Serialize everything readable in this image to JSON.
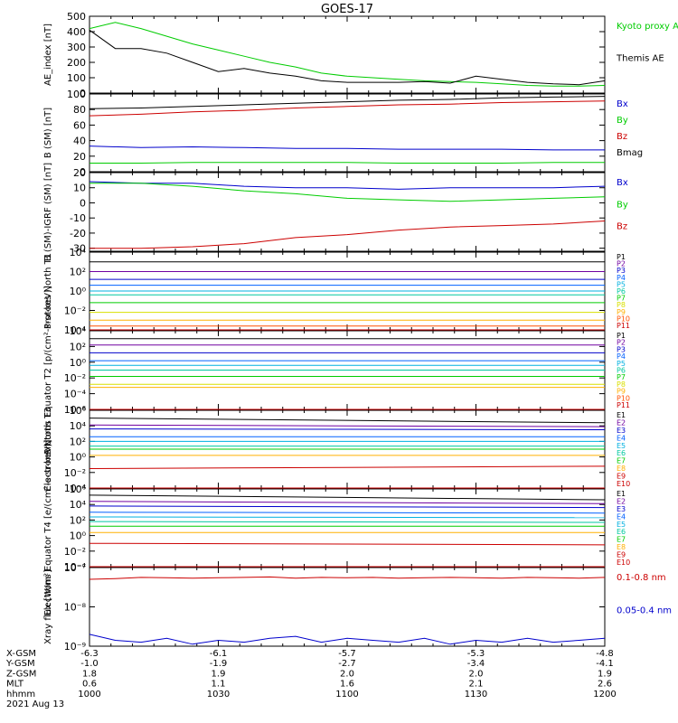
{
  "figure_title": "GOES-17",
  "ephemeris": {
    "rows": [
      {
        "label": "X-GSM",
        "values": [
          "-6.3",
          "-6.1",
          "-5.7",
          "-5.3",
          "-4.8"
        ]
      },
      {
        "label": "Y-GSM",
        "values": [
          "-1.0",
          "-1.9",
          "-2.7",
          "-3.4",
          "-4.1"
        ]
      },
      {
        "label": "Z-GSM",
        "values": [
          "1.8",
          "1.9",
          "2.0",
          "2.0",
          "1.9"
        ]
      },
      {
        "label": "MLT",
        "values": [
          "0.6",
          "1.1",
          "1.6",
          "2.1",
          "2.6"
        ]
      },
      {
        "label": "hhmm",
        "values": [
          "1000",
          "1030",
          "1100",
          "1130",
          "1200"
        ]
      }
    ],
    "date": "2021 Aug 13"
  },
  "chart_data": [
    {
      "type": "line",
      "ylabel": "AE_index [nT]",
      "scale": "linear",
      "ylim": [
        0,
        500
      ],
      "ticks": [
        0,
        100,
        200,
        300,
        400,
        500
      ],
      "tick_labels": [
        "0",
        "100",
        "200",
        "300",
        "400",
        "500"
      ],
      "x": [
        0,
        6,
        12,
        18,
        24,
        30,
        36,
        42,
        48,
        54,
        60,
        66,
        72,
        78,
        84,
        90,
        96,
        102,
        108,
        114,
        120
      ],
      "series": [
        {
          "name": "Kyoto proxy AE",
          "color": "#00cc00",
          "values": [
            420,
            460,
            420,
            370,
            320,
            280,
            240,
            200,
            170,
            130,
            110,
            100,
            90,
            80,
            75,
            70,
            60,
            50,
            45,
            45,
            50
          ]
        },
        {
          "name": "Themis AE",
          "color": "#000000",
          "values": [
            410,
            290,
            290,
            260,
            200,
            140,
            160,
            130,
            110,
            80,
            70,
            70,
            70,
            75,
            65,
            110,
            90,
            70,
            60,
            55,
            80
          ]
        }
      ]
    },
    {
      "type": "line",
      "ylabel": "B (SM) [nT]",
      "scale": "linear",
      "ylim": [
        0,
        100
      ],
      "ticks": [
        0,
        20,
        40,
        60,
        80,
        100
      ],
      "tick_labels": [
        "0",
        "20",
        "40",
        "60",
        "80",
        "100"
      ],
      "x": [
        0,
        12,
        24,
        36,
        48,
        60,
        72,
        84,
        96,
        108,
        120
      ],
      "series": [
        {
          "name": "Bx",
          "color": "#0000cc",
          "values": [
            33,
            31,
            32,
            31,
            30,
            30,
            29,
            29,
            29,
            28,
            28
          ]
        },
        {
          "name": "By",
          "color": "#00cc00",
          "values": [
            11,
            11,
            12,
            12,
            12,
            12,
            11,
            11,
            11,
            12,
            12
          ]
        },
        {
          "name": "Bz",
          "color": "#cc0000",
          "values": [
            72,
            74,
            77,
            79,
            82,
            84,
            86,
            87,
            89,
            90,
            91
          ]
        },
        {
          "name": "Bmag",
          "color": "#000000",
          "values": [
            81,
            82,
            84,
            86,
            88,
            90,
            92,
            93,
            95,
            96,
            97
          ]
        }
      ]
    },
    {
      "type": "line",
      "ylabel": "B (SM)-IGRF (SM) [nT]",
      "scale": "linear",
      "ylim": [
        -32,
        20
      ],
      "ticks": [
        -30,
        -20,
        -10,
        0,
        10,
        20
      ],
      "tick_labels": [
        "-30",
        "-20",
        "-10",
        "0",
        "10",
        "20"
      ],
      "x": [
        0,
        12,
        24,
        36,
        48,
        60,
        72,
        84,
        96,
        108,
        120
      ],
      "series": [
        {
          "name": "Bx",
          "color": "#0000cc",
          "values": [
            14,
            13,
            13,
            11,
            10,
            10,
            9,
            10,
            10,
            10,
            11
          ]
        },
        {
          "name": "By",
          "color": "#00cc00",
          "values": [
            13,
            13,
            11,
            8,
            6,
            3,
            2,
            1,
            2,
            3,
            4
          ]
        },
        {
          "name": "Bz",
          "color": "#cc0000",
          "values": [
            -30,
            -30,
            -29,
            -27,
            -23,
            -21,
            -18,
            -16,
            -15,
            -14,
            -12
          ]
        }
      ]
    },
    {
      "type": "line",
      "ylabel": "Protons North T1",
      "scale": "log",
      "ylim": [
        -4,
        4
      ],
      "ticks": [
        -4,
        -2,
        0,
        2,
        4
      ],
      "tick_labels": [
        "10⁻⁴",
        "10⁻²",
        "10⁰",
        "10²",
        "10⁴"
      ],
      "x": [
        0,
        120
      ],
      "series": [
        {
          "name": "P1",
          "color": "#000000",
          "values": [
            3.0,
            3.0
          ]
        },
        {
          "name": "P2",
          "color": "#7000a0",
          "values": [
            2.0,
            2.0
          ]
        },
        {
          "name": "P3",
          "color": "#0000cc",
          "values": [
            1.2,
            1.2
          ]
        },
        {
          "name": "P4",
          "color": "#0060ff",
          "values": [
            0.6,
            0.6
          ]
        },
        {
          "name": "P5",
          "color": "#00b0e0",
          "values": [
            0.0,
            0.0
          ]
        },
        {
          "name": "P6",
          "color": "#00c8a0",
          "values": [
            -0.4,
            -0.4
          ]
        },
        {
          "name": "P7",
          "color": "#00cc00",
          "values": [
            -1.2,
            -1.2
          ]
        },
        {
          "name": "P8",
          "color": "#d8e000",
          "values": [
            -2.2,
            -2.2
          ]
        },
        {
          "name": "P9",
          "color": "#ffb000",
          "values": [
            -3.0,
            -3.0
          ]
        },
        {
          "name": "P10",
          "color": "#ff5000",
          "values": [
            -3.6,
            -3.6
          ]
        },
        {
          "name": "P11",
          "color": "#cc0000",
          "values": [
            -4.5,
            -4.5
          ]
        }
      ]
    },
    {
      "type": "line",
      "ylabel": "Protons Equator T2 [p/(cm²-s-sr-keV)]",
      "scale": "log",
      "ylim": [
        -6,
        4
      ],
      "ticks": [
        -6,
        -4,
        -2,
        0,
        2,
        4
      ],
      "tick_labels": [
        "10⁻⁶",
        "10⁻⁴",
        "10⁻²",
        "10⁰",
        "10²",
        "10⁴"
      ],
      "x": [
        0,
        120
      ],
      "series": [
        {
          "name": "P1",
          "color": "#000000",
          "values": [
            3.0,
            3.0
          ]
        },
        {
          "name": "P2",
          "color": "#7000a0",
          "values": [
            2.2,
            2.2
          ]
        },
        {
          "name": "P3",
          "color": "#0000cc",
          "values": [
            1.2,
            1.2
          ]
        },
        {
          "name": "P4",
          "color": "#0060ff",
          "values": [
            0.2,
            0.2
          ]
        },
        {
          "name": "P5",
          "color": "#00b0e0",
          "values": [
            -0.4,
            -0.4
          ]
        },
        {
          "name": "P6",
          "color": "#00c8a0",
          "values": [
            -1.0,
            -1.0
          ]
        },
        {
          "name": "P7",
          "color": "#00cc00",
          "values": [
            -1.8,
            -1.8
          ]
        },
        {
          "name": "P8",
          "color": "#d8e000",
          "values": [
            -2.8,
            -2.8
          ]
        },
        {
          "name": "P9",
          "color": "#ffb000",
          "values": [
            -3.2,
            -3.2
          ]
        },
        {
          "name": "P10",
          "color": "#ff5000",
          "values": [
            -6.5,
            -6.5
          ]
        },
        {
          "name": "P11",
          "color": "#cc0000",
          "values": [
            -6.5,
            -6.5
          ]
        }
      ]
    },
    {
      "type": "line",
      "ylabel": "Electrons North T3",
      "scale": "log",
      "ylim": [
        -4,
        6
      ],
      "ticks": [
        -4,
        -2,
        0,
        2,
        4,
        6
      ],
      "tick_labels": [
        "10⁻⁴",
        "10⁻²",
        "10⁰",
        "10²",
        "10⁴",
        "10⁶"
      ],
      "x": [
        0,
        120
      ],
      "series": [
        {
          "name": "E1",
          "color": "#000000",
          "values": [
            5.0,
            4.4
          ]
        },
        {
          "name": "E2",
          "color": "#7000a0",
          "values": [
            4.1,
            3.9
          ]
        },
        {
          "name": "E3",
          "color": "#0000cc",
          "values": [
            3.6,
            3.5
          ]
        },
        {
          "name": "E4",
          "color": "#0060ff",
          "values": [
            2.6,
            2.6
          ]
        },
        {
          "name": "E5",
          "color": "#00b0e0",
          "values": [
            2.0,
            2.0
          ]
        },
        {
          "name": "E6",
          "color": "#00c8a0",
          "values": [
            1.4,
            1.4
          ]
        },
        {
          "name": "E7",
          "color": "#00cc00",
          "values": [
            1.0,
            1.0
          ]
        },
        {
          "name": "E8",
          "color": "#ffb000",
          "values": [
            0.2,
            0.2
          ]
        },
        {
          "name": "E9",
          "color": "#cc0000",
          "values": [
            -1.5,
            -1.2
          ]
        },
        {
          "name": "E10",
          "color": "#cc0000",
          "values": [
            -5.0,
            -5.0
          ]
        }
      ]
    },
    {
      "type": "line",
      "ylabel": "Electrons Equator T4 [e/(cm²-s-sr-keV)]",
      "scale": "log",
      "ylim": [
        -4,
        6
      ],
      "ticks": [
        -4,
        -2,
        0,
        2,
        4,
        6
      ],
      "tick_labels": [
        "10⁻⁴",
        "10⁻²",
        "10⁰",
        "10²",
        "10⁴",
        "10⁶"
      ],
      "x": [
        0,
        120
      ],
      "series": [
        {
          "name": "E1",
          "color": "#000000",
          "values": [
            5.2,
            4.6
          ]
        },
        {
          "name": "E2",
          "color": "#7000a0",
          "values": [
            4.4,
            4.1
          ]
        },
        {
          "name": "E3",
          "color": "#0000cc",
          "values": [
            3.8,
            3.6
          ]
        },
        {
          "name": "E4",
          "color": "#0060ff",
          "values": [
            3.0,
            2.9
          ]
        },
        {
          "name": "E5",
          "color": "#00b0e0",
          "values": [
            2.4,
            2.3
          ]
        },
        {
          "name": "E6",
          "color": "#00c8a0",
          "values": [
            1.8,
            1.7
          ]
        },
        {
          "name": "E7",
          "color": "#00cc00",
          "values": [
            1.2,
            1.2
          ]
        },
        {
          "name": "E8",
          "color": "#ffb000",
          "values": [
            0.4,
            0.4
          ]
        },
        {
          "name": "E9",
          "color": "#cc0000",
          "values": [
            -1.0,
            -1.2
          ]
        },
        {
          "name": "E10",
          "color": "#cc0000",
          "values": [
            -5.0,
            -5.0
          ]
        }
      ]
    },
    {
      "type": "line",
      "ylabel": "Xray flux [W/m²]",
      "scale": "log",
      "ylim": [
        -9,
        -7
      ],
      "ticks": [
        -9,
        -8,
        -7
      ],
      "tick_labels": [
        "10⁻⁹",
        "10⁻⁸",
        "10⁻⁷"
      ],
      "x": [
        0,
        6,
        12,
        18,
        24,
        30,
        36,
        42,
        48,
        54,
        60,
        66,
        72,
        78,
        84,
        90,
        96,
        102,
        108,
        114,
        120
      ],
      "series": [
        {
          "name": "0.1-0.8 nm",
          "color": "#cc0000",
          "values": [
            -7.3,
            -7.28,
            -7.25,
            -7.26,
            -7.27,
            -7.26,
            -7.25,
            -7.24,
            -7.27,
            -7.25,
            -7.26,
            -7.25,
            -7.27,
            -7.26,
            -7.25,
            -7.26,
            -7.27,
            -7.25,
            -7.26,
            -7.27,
            -7.25
          ]
        },
        {
          "name": "0.05-0.4 nm",
          "color": "#0000cc",
          "values": [
            -8.7,
            -8.85,
            -8.9,
            -8.8,
            -8.95,
            -8.85,
            -8.9,
            -8.8,
            -8.75,
            -8.9,
            -8.8,
            -8.85,
            -8.9,
            -8.8,
            -8.95,
            -8.85,
            -8.9,
            -8.8,
            -8.9,
            -8.85,
            -8.8
          ]
        }
      ]
    }
  ]
}
